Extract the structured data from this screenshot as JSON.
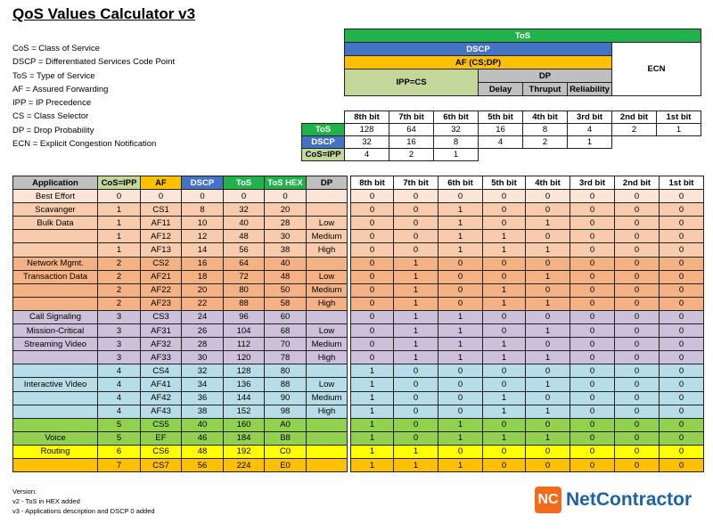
{
  "title": "QoS Values Calculator v3",
  "legend": [
    "CoS = Class of Service",
    "DSCP = Differentiated Services Code Point",
    "ToS = Type of Service",
    "AF = Assured Forwarding",
    "IPP = IP Precedence",
    "CS = Class Selector",
    "DP = Drop Probability",
    "ECN = Explicit Congestion Notification"
  ],
  "top": {
    "tos": "ToS",
    "dscp": "DSCP",
    "af": "AF (CS;DP)",
    "ecn": "ECN",
    "ippcs": "IPP=CS",
    "dp": "DP",
    "delay": "Delay",
    "thruput": "Thruput",
    "reliability": "Reliability",
    "bits": [
      "8th bit",
      "7th bit",
      "6th bit",
      "5th bit",
      "4th bit",
      "3rd bit",
      "2nd bit",
      "1st bit"
    ],
    "value_rows": [
      {
        "label": "ToS",
        "values": [
          "128",
          "64",
          "32",
          "16",
          "8",
          "4",
          "2",
          "1"
        ]
      },
      {
        "label": "DSCP",
        "values": [
          "32",
          "16",
          "8",
          "4",
          "2",
          "1"
        ]
      },
      {
        "label": "CoS=IPP",
        "values": [
          "4",
          "2",
          "1"
        ]
      }
    ]
  },
  "main": {
    "headers": [
      "Application",
      "CoS=IPP",
      "AF",
      "DSCP",
      "ToS",
      "ToS HEX",
      "DP",
      "8th bit",
      "7th bit",
      "6th bit",
      "5th bit",
      "4th bit",
      "3rd bit",
      "2nd bit",
      "1st bit"
    ],
    "rows": [
      {
        "c": [
          "Best Effort",
          "0",
          "0",
          "0",
          "0",
          "0",
          "",
          "0",
          "0",
          "0",
          "0",
          "0",
          "0",
          "0",
          "0"
        ]
      },
      {
        "c": [
          "Scavanger",
          "1",
          "CS1",
          "8",
          "32",
          "20",
          "",
          "0",
          "0",
          "1",
          "0",
          "0",
          "0",
          "0",
          "0"
        ]
      },
      {
        "c": [
          "Bulk Data",
          "1",
          "AF11",
          "10",
          "40",
          "28",
          "Low",
          "0",
          "0",
          "1",
          "0",
          "1",
          "0",
          "0",
          "0"
        ]
      },
      {
        "c": [
          "",
          "1",
          "AF12",
          "12",
          "48",
          "30",
          "Medium",
          "0",
          "0",
          "1",
          "1",
          "0",
          "0",
          "0",
          "0"
        ]
      },
      {
        "c": [
          "",
          "1",
          "AF13",
          "14",
          "56",
          "38",
          "High",
          "0",
          "0",
          "1",
          "1",
          "1",
          "0",
          "0",
          "0"
        ]
      },
      {
        "c": [
          "Network Mgmt.",
          "2",
          "CS2",
          "16",
          "64",
          "40",
          "",
          "0",
          "1",
          "0",
          "0",
          "0",
          "0",
          "0",
          "0"
        ]
      },
      {
        "c": [
          "Transaction Data",
          "2",
          "AF21",
          "18",
          "72",
          "48",
          "Low",
          "0",
          "1",
          "0",
          "0",
          "1",
          "0",
          "0",
          "0"
        ]
      },
      {
        "c": [
          "",
          "2",
          "AF22",
          "20",
          "80",
          "50",
          "Medium",
          "0",
          "1",
          "0",
          "1",
          "0",
          "0",
          "0",
          "0"
        ]
      },
      {
        "c": [
          "",
          "2",
          "AF23",
          "22",
          "88",
          "58",
          "High",
          "0",
          "1",
          "0",
          "1",
          "1",
          "0",
          "0",
          "0"
        ]
      },
      {
        "c": [
          "Call Signaling",
          "3",
          "CS3",
          "24",
          "96",
          "60",
          "",
          "0",
          "1",
          "1",
          "0",
          "0",
          "0",
          "0",
          "0"
        ]
      },
      {
        "c": [
          "Mission-Critical",
          "3",
          "AF31",
          "26",
          "104",
          "68",
          "Low",
          "0",
          "1",
          "1",
          "0",
          "1",
          "0",
          "0",
          "0"
        ]
      },
      {
        "c": [
          "Streaming Video",
          "3",
          "AF32",
          "28",
          "112",
          "70",
          "Medium",
          "0",
          "1",
          "1",
          "1",
          "0",
          "0",
          "0",
          "0"
        ]
      },
      {
        "c": [
          "",
          "3",
          "AF33",
          "30",
          "120",
          "78",
          "High",
          "0",
          "1",
          "1",
          "1",
          "1",
          "0",
          "0",
          "0"
        ]
      },
      {
        "c": [
          "",
          "4",
          "CS4",
          "32",
          "128",
          "80",
          "",
          "1",
          "0",
          "0",
          "0",
          "0",
          "0",
          "0",
          "0"
        ]
      },
      {
        "c": [
          "Interactive Video",
          "4",
          "AF41",
          "34",
          "136",
          "88",
          "Low",
          "1",
          "0",
          "0",
          "0",
          "1",
          "0",
          "0",
          "0"
        ]
      },
      {
        "c": [
          "",
          "4",
          "AF42",
          "36",
          "144",
          "90",
          "Medium",
          "1",
          "0",
          "0",
          "1",
          "0",
          "0",
          "0",
          "0"
        ]
      },
      {
        "c": [
          "",
          "4",
          "AF43",
          "38",
          "152",
          "98",
          "High",
          "1",
          "0",
          "0",
          "1",
          "1",
          "0",
          "0",
          "0"
        ]
      },
      {
        "c": [
          "",
          "5",
          "CS5",
          "40",
          "160",
          "A0",
          "",
          "1",
          "0",
          "1",
          "0",
          "0",
          "0",
          "0",
          "0"
        ]
      },
      {
        "c": [
          "Voice",
          "5",
          "EF",
          "46",
          "184",
          "B8",
          "",
          "1",
          "0",
          "1",
          "1",
          "1",
          "0",
          "0",
          "0"
        ]
      },
      {
        "c": [
          "Routing",
          "6",
          "CS6",
          "48",
          "192",
          "C0",
          "",
          "1",
          "1",
          "0",
          "0",
          "0",
          "0",
          "0",
          "0"
        ]
      },
      {
        "c": [
          "",
          "7",
          "CS7",
          "56",
          "224",
          "E0",
          "",
          "1",
          "1",
          "1",
          "0",
          "0",
          "0",
          "0",
          "0"
        ]
      }
    ]
  },
  "version": {
    "heading": "Version:",
    "lines": [
      "v2 - ToS in HEX added",
      "v3 - Applications description and DSCP 0  added"
    ]
  },
  "logo": {
    "mark": "NC",
    "text": "NetContractor"
  },
  "colors": {
    "tos_green": "#22b24c",
    "dscp_blue": "#4472c4",
    "af_orange": "#ffc000",
    "ipp_olive": "#c4d79b",
    "dp_gray": "#bfbfbf",
    "header_gray": "#bfbfbf",
    "cos0": "#fce4d6",
    "cos1": "#f8cbad",
    "cos2": "#f4b183",
    "cos3": "#ccc0da",
    "cos4": "#b7dee8",
    "cos5": "#92d050",
    "cos6": "#ffff00",
    "cos7": "#ffc000",
    "logo_orange": "#f26b1d",
    "logo_blue": "#1f62a7"
  }
}
